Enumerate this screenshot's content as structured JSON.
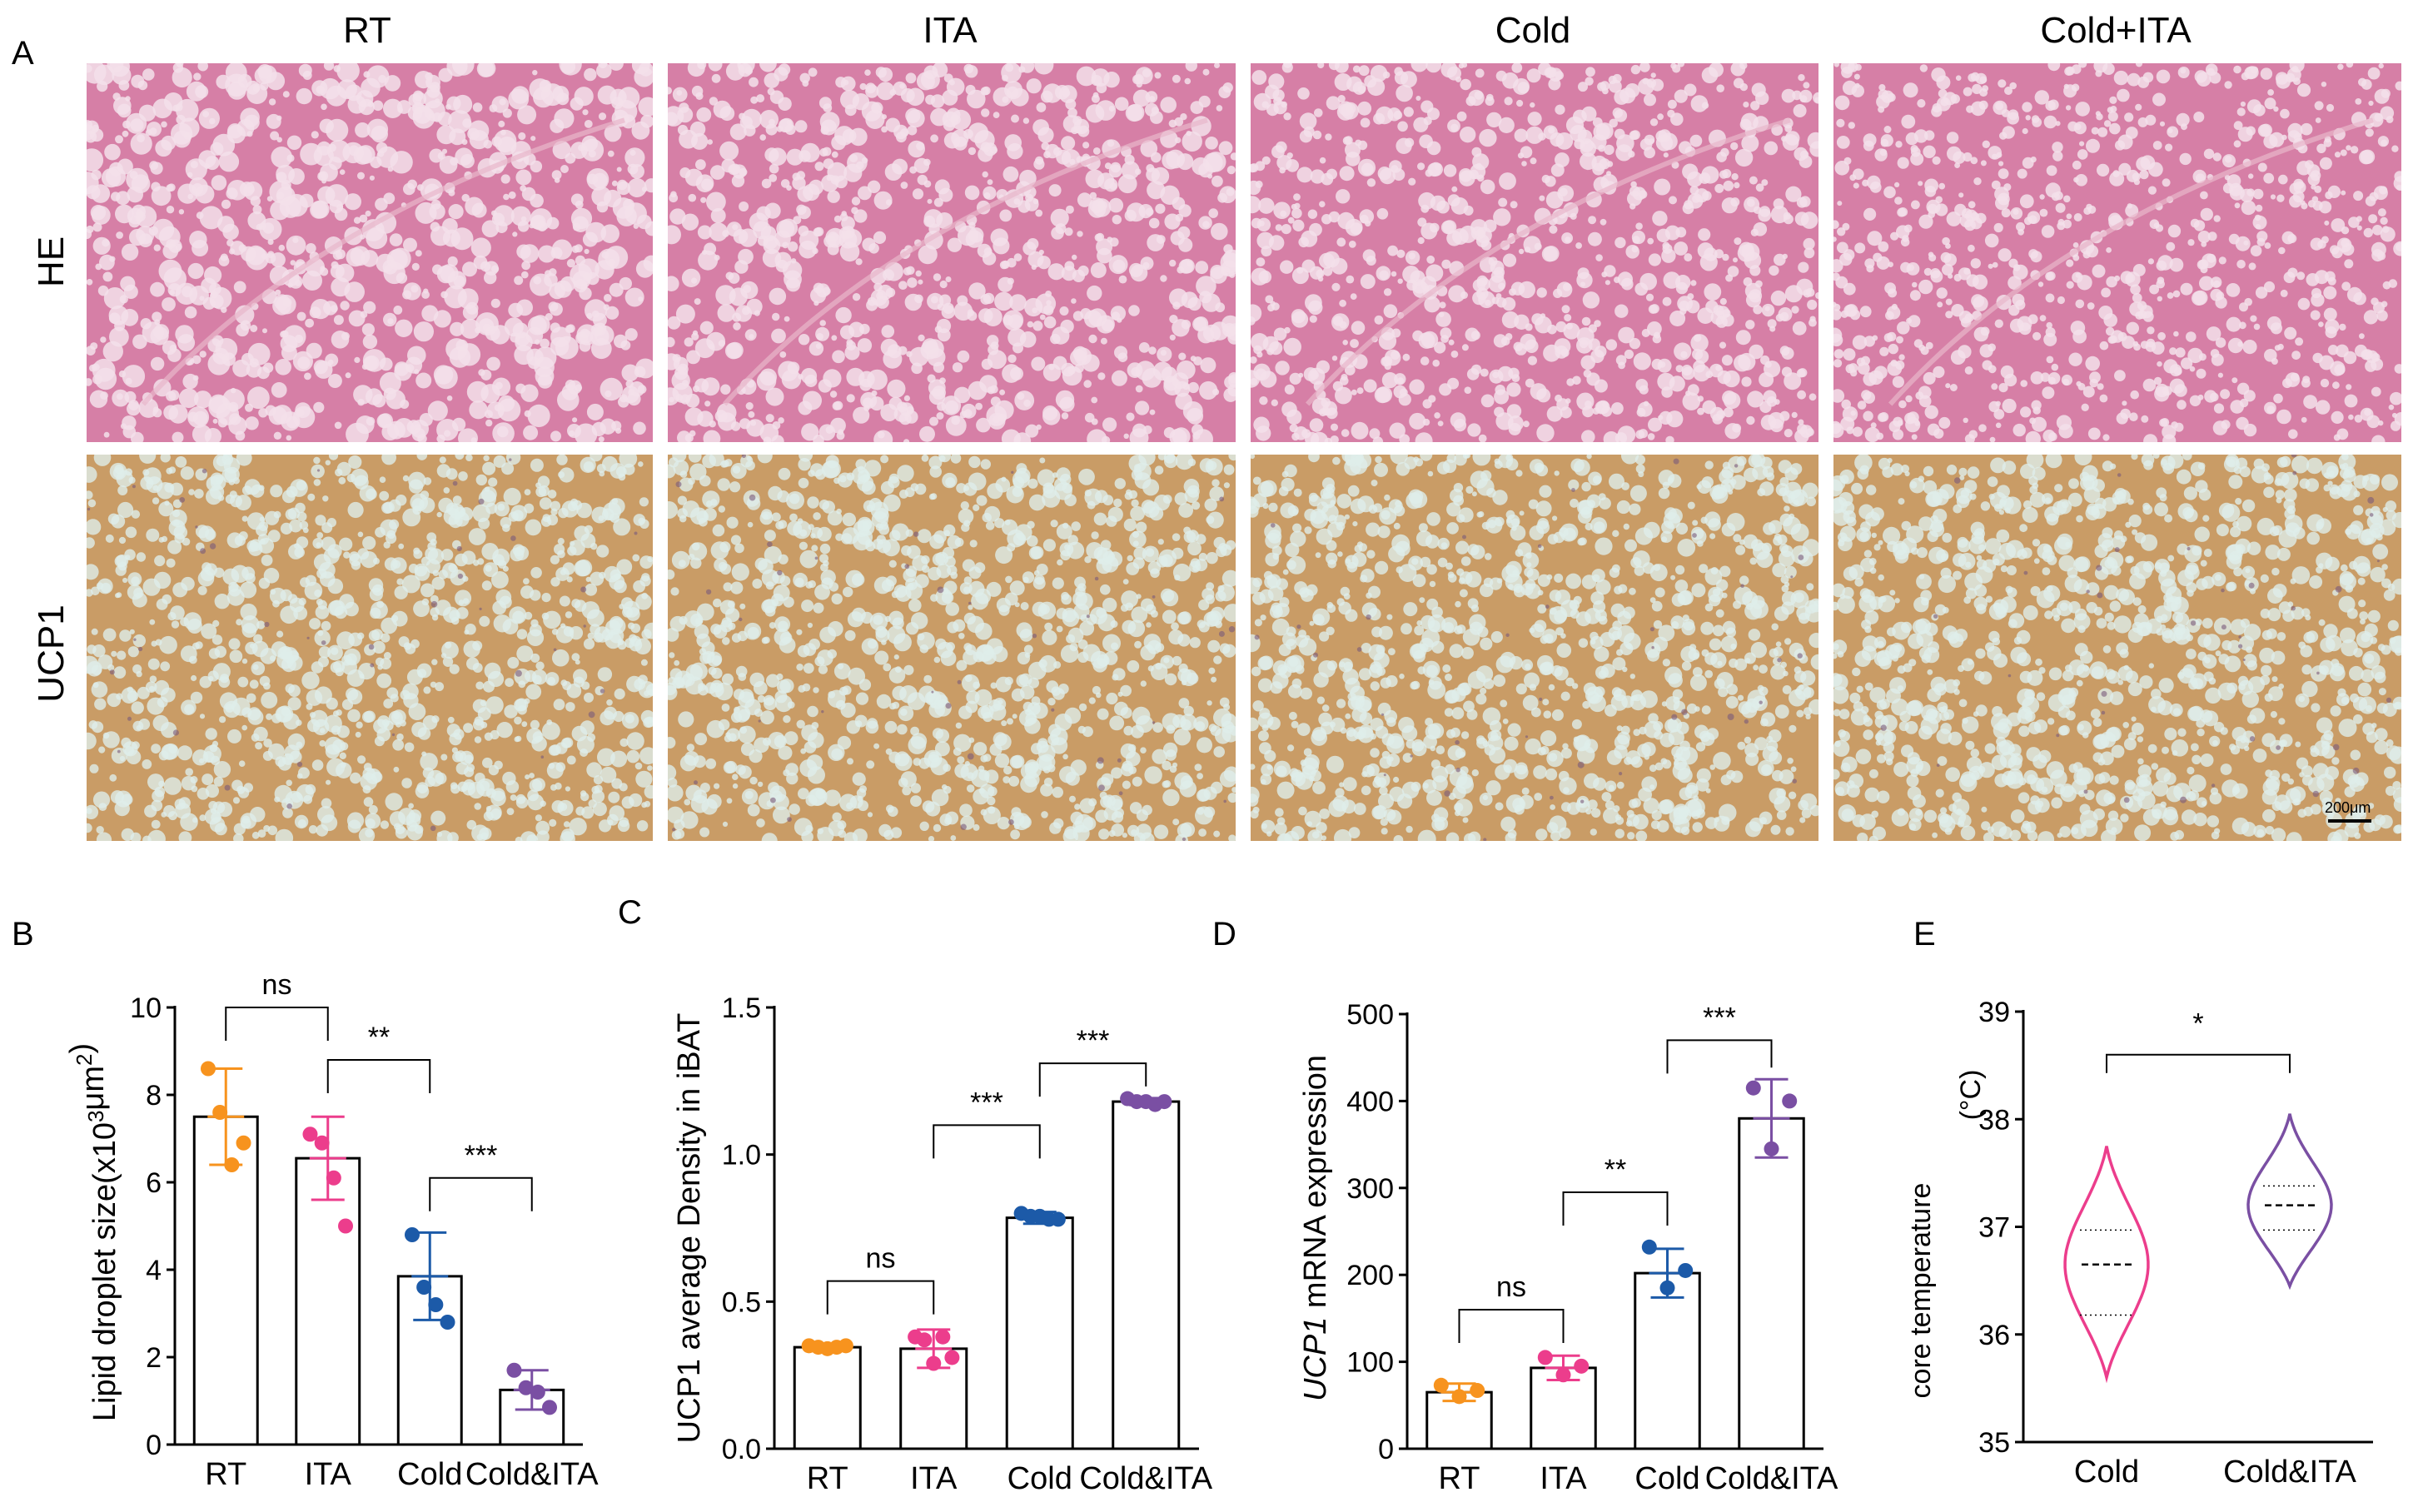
{
  "panel_letters": {
    "A": "A",
    "B": "B",
    "C": "C",
    "D": "D",
    "E": "E"
  },
  "panel_a": {
    "columns": [
      "RT",
      "ITA",
      "Cold",
      "Cold+ITA"
    ],
    "rows": [
      "HE",
      "UCP1"
    ],
    "scale_bar": "200μm",
    "colors": {
      "he_bg": "#d67fa6",
      "he_cell": "#f3e0ea",
      "he_line": "#e8b6cb",
      "ucp1_bg": "#c99c66",
      "ucp1_cell": "#dfeeea",
      "ucp1_dark": "#7a5a7a"
    }
  },
  "colors": {
    "RT": "#f7931e",
    "ITA": "#ec3d8c",
    "Cold": "#1c5aa8",
    "Cold_ITA": "#7a4fa3"
  },
  "chart_data": [
    {
      "panel": "B",
      "type": "bar",
      "categories": [
        "RT",
        "ITA",
        "Cold",
        "Cold&ITA"
      ],
      "values": [
        7.5,
        6.55,
        3.85,
        1.25
      ],
      "errors": [
        1.1,
        0.95,
        1.0,
        0.45
      ],
      "points": [
        [
          8.6,
          7.6,
          6.4,
          6.9
        ],
        [
          7.1,
          6.9,
          6.1,
          5.0
        ],
        [
          4.8,
          3.6,
          3.2,
          2.8
        ],
        [
          1.7,
          1.3,
          1.2,
          0.85
        ]
      ],
      "ylabel_pre": "Lipid droplet size(x10",
      "ylabel_sup": "3",
      "ylabel_mid": "μm",
      "ylabel_sup2": "2",
      "ylabel_post": ")",
      "ylim": [
        0,
        10
      ],
      "yticks": [
        "0",
        "2",
        "4",
        "6",
        "8",
        "10"
      ],
      "significance": [
        {
          "from": 0,
          "to": 1,
          "label": "ns",
          "y": 10.0
        },
        {
          "from": 1,
          "to": 2,
          "label": "**",
          "y": 8.8
        },
        {
          "from": 2,
          "to": 3,
          "label": "***",
          "y": 6.1
        }
      ]
    },
    {
      "panel": "C",
      "type": "bar",
      "categories": [
        "RT",
        "ITA",
        "Cold",
        "Cold&ITA"
      ],
      "values": [
        0.345,
        0.34,
        0.785,
        1.18
      ],
      "errors": [
        0.01,
        0.065,
        0.02,
        0.012
      ],
      "points": [
        [
          0.35,
          0.345,
          0.34,
          0.345,
          0.35
        ],
        [
          0.38,
          0.37,
          0.29,
          0.38,
          0.31
        ],
        [
          0.8,
          0.79,
          0.79,
          0.78,
          0.78
        ],
        [
          1.19,
          1.18,
          1.18,
          1.17,
          1.18
        ]
      ],
      "ylabel": "UCP1 average Density in iBAT",
      "ylim": [
        0,
        1.5
      ],
      "yticks": [
        "0.0",
        "0.5",
        "1.0",
        "1.5"
      ],
      "significance": [
        {
          "from": 0,
          "to": 1,
          "label": "ns",
          "y": 0.57
        },
        {
          "from": 1,
          "to": 2,
          "label": "***",
          "y": 1.1
        },
        {
          "from": 2,
          "to": 3,
          "label": "***",
          "y": 1.31
        }
      ]
    },
    {
      "panel": "D",
      "type": "bar",
      "categories": [
        "RT",
        "ITA",
        "Cold",
        "Cold&ITA"
      ],
      "values": [
        65,
        93,
        202,
        380
      ],
      "errors": [
        10,
        14,
        28,
        45
      ],
      "points": [
        [
          73,
          60,
          67
        ],
        [
          105,
          85,
          95
        ],
        [
          232,
          185,
          205
        ],
        [
          415,
          345,
          400
        ]
      ],
      "ylabel_italic": "UCP1",
      "ylabel_rest": " mRNA  expression",
      "ylim": [
        0,
        500
      ],
      "yticks": [
        "0",
        "100",
        "200",
        "300",
        "400",
        "500"
      ],
      "significance": [
        {
          "from": 0,
          "to": 1,
          "label": "ns",
          "y": 160
        },
        {
          "from": 1,
          "to": 2,
          "label": "**",
          "y": 295
        },
        {
          "from": 2,
          "to": 3,
          "label": "***",
          "y": 470
        }
      ]
    },
    {
      "panel": "E",
      "type": "violin",
      "categories": [
        "Cold",
        "Cold&ITA"
      ],
      "medians": [
        36.65,
        37.2
      ],
      "q1": [
        36.18,
        36.97
      ],
      "q3": [
        36.97,
        37.38
      ],
      "min": [
        35.6,
        36.45
      ],
      "max": [
        37.75,
        38.05
      ],
      "ylabel": "core temperature",
      "unit": "(°C)",
      "ylim": [
        35,
        39
      ],
      "yticks": [
        "35",
        "36",
        "37",
        "38",
        "39"
      ],
      "significance": [
        {
          "from": 0,
          "to": 1,
          "label": "*",
          "y": 38.6
        }
      ]
    }
  ]
}
